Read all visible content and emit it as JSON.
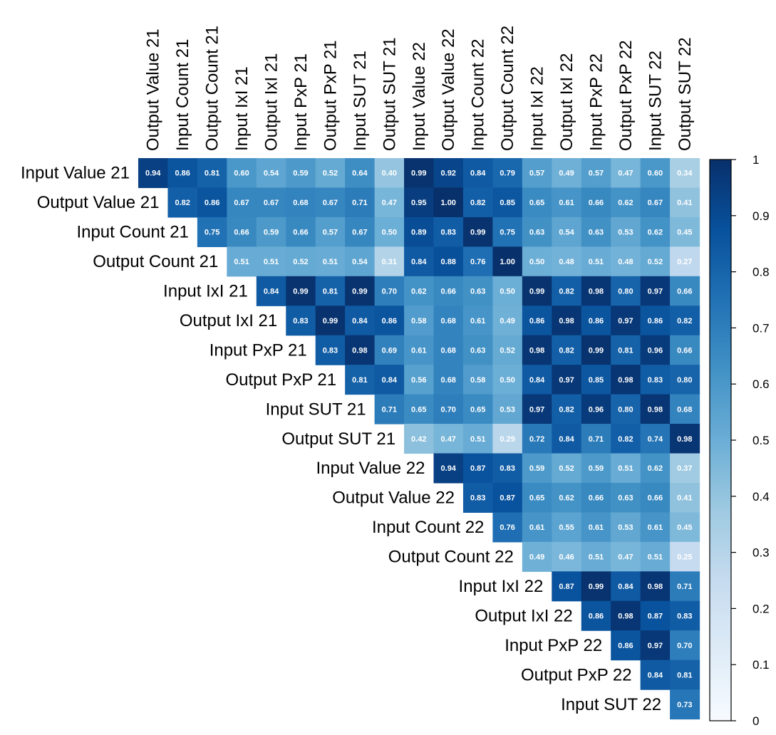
{
  "chart_data": {
    "type": "heatmap",
    "title": "",
    "variant": "upper-triangle correlation matrix (diagonal excluded)",
    "row_labels": [
      "Input Value 21",
      "Output Value 21",
      "Input Count 21",
      "Output Count 21",
      "Input IxI 21",
      "Output IxI 21",
      "Input PxP 21",
      "Output PxP 21",
      "Input SUT 21",
      "Output SUT 21",
      "Input Value 22",
      "Output Value 22",
      "Input Count 22",
      "Output Count 22",
      "Input IxI 22",
      "Output IxI 22",
      "Input PxP 22",
      "Output PxP 22",
      "Input SUT 22"
    ],
    "col_labels": [
      "Output Value 21",
      "Input Count 21",
      "Output Count 21",
      "Input IxI 21",
      "Output IxI 21",
      "Input PxP 21",
      "Output PxP 21",
      "Input SUT 21",
      "Output SUT 21",
      "Input Value 22",
      "Output Value 22",
      "Input Count 22",
      "Output Count 22",
      "Input IxI 22",
      "Output IxI 22",
      "Input PxP 22",
      "Output PxP 22",
      "Input SUT 22",
      "Output SUT 22"
    ],
    "rows": [
      [
        0.94,
        0.86,
        0.81,
        0.6,
        0.54,
        0.59,
        0.52,
        0.64,
        0.4,
        0.99,
        0.92,
        0.84,
        0.79,
        0.57,
        0.49,
        0.57,
        0.47,
        0.6,
        0.34
      ],
      [
        0.82,
        0.86,
        0.67,
        0.67,
        0.68,
        0.67,
        0.71,
        0.47,
        0.95,
        1.0,
        0.82,
        0.85,
        0.65,
        0.61,
        0.66,
        0.62,
        0.67,
        0.41
      ],
      [
        0.75,
        0.66,
        0.59,
        0.66,
        0.57,
        0.67,
        0.5,
        0.89,
        0.83,
        0.99,
        0.75,
        0.63,
        0.54,
        0.63,
        0.53,
        0.62,
        0.45
      ],
      [
        0.51,
        0.51,
        0.52,
        0.51,
        0.54,
        0.31,
        0.84,
        0.88,
        0.76,
        1.0,
        0.5,
        0.48,
        0.51,
        0.48,
        0.52,
        0.27
      ],
      [
        0.84,
        0.99,
        0.81,
        0.99,
        0.7,
        0.62,
        0.66,
        0.63,
        0.5,
        0.99,
        0.82,
        0.98,
        0.8,
        0.97,
        0.66
      ],
      [
        0.83,
        0.99,
        0.84,
        0.86,
        0.58,
        0.68,
        0.61,
        0.49,
        0.86,
        0.98,
        0.86,
        0.97,
        0.86,
        0.82
      ],
      [
        0.83,
        0.98,
        0.69,
        0.61,
        0.68,
        0.63,
        0.52,
        0.98,
        0.82,
        0.99,
        0.81,
        0.96,
        0.66
      ],
      [
        0.81,
        0.84,
        0.56,
        0.68,
        0.58,
        0.5,
        0.84,
        0.97,
        0.85,
        0.98,
        0.83,
        0.8
      ],
      [
        0.71,
        0.65,
        0.7,
        0.65,
        0.53,
        0.97,
        0.82,
        0.96,
        0.8,
        0.98,
        0.68
      ],
      [
        0.42,
        0.47,
        0.51,
        0.29,
        0.72,
        0.84,
        0.71,
        0.82,
        0.74,
        0.98
      ],
      [
        0.94,
        0.87,
        0.83,
        0.59,
        0.52,
        0.59,
        0.51,
        0.62,
        0.37
      ],
      [
        0.83,
        0.87,
        0.65,
        0.62,
        0.66,
        0.63,
        0.66,
        0.41
      ],
      [
        0.76,
        0.61,
        0.55,
        0.61,
        0.53,
        0.61,
        0.45
      ],
      [
        0.49,
        0.46,
        0.51,
        0.47,
        0.51,
        0.25
      ],
      [
        0.87,
        0.99,
        0.84,
        0.98,
        0.71
      ],
      [
        0.86,
        0.98,
        0.87,
        0.83
      ],
      [
        0.86,
        0.97,
        0.7
      ],
      [
        0.84,
        0.81
      ],
      [
        0.73
      ]
    ],
    "colorbar": {
      "range": [
        0,
        1
      ],
      "ticks": [
        0,
        0.1,
        0.2,
        0.3,
        0.4,
        0.5,
        0.6,
        0.7,
        0.8,
        0.9,
        1
      ],
      "tick_labels": [
        "0",
        "0.1",
        "0.2",
        "0.3",
        "0.4",
        "0.5",
        "0.6",
        "0.7",
        "0.8",
        "0.9",
        "1"
      ],
      "placement": "right",
      "colormap": "Blues",
      "color_stops": [
        "#f7fbff",
        "#deebf7",
        "#c6dbef",
        "#9ecae1",
        "#6baed6",
        "#4292c6",
        "#2171b5",
        "#08519c",
        "#08306b"
      ]
    }
  }
}
